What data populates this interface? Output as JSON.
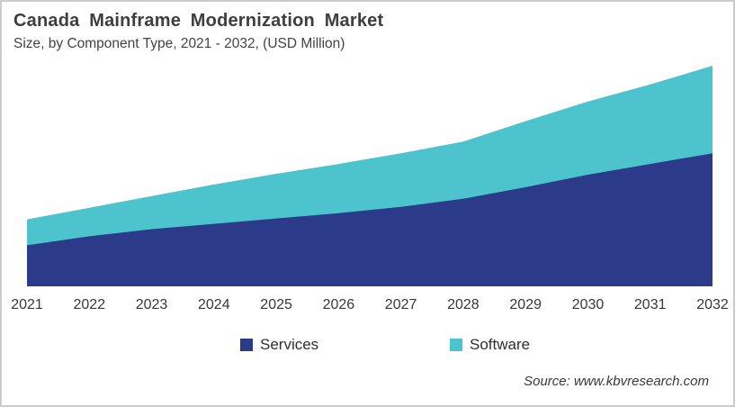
{
  "header": {
    "title": "Canada Mainframe Modernization Market",
    "subtitle": "Size, by Component Type, 2021 - 2032, (USD Million)"
  },
  "source": {
    "label": "Source: www.kbvresearch.com"
  },
  "legend": {
    "items": [
      {
        "label": "Services",
        "color": "#2b3b8a"
      },
      {
        "label": "Software",
        "color": "#4dc4cd"
      }
    ]
  },
  "chart_data": {
    "type": "area",
    "stacked": true,
    "title": "Canada Mainframe Modernization Market",
    "subtitle": "Size, by Component Type, 2021 - 2032, (USD Million)",
    "units": "USD Million",
    "categories": [
      "2021",
      "2022",
      "2023",
      "2024",
      "2025",
      "2026",
      "2027",
      "2028",
      "2029",
      "2030",
      "2031",
      "2032"
    ],
    "series": [
      {
        "name": "Services",
        "color": "#2b3b8a",
        "values": [
          46,
          56,
          64,
          70,
          76,
          82,
          89,
          98,
          111,
          125,
          137,
          149
        ]
      },
      {
        "name": "Software",
        "color": "#4dc4cd",
        "values": [
          29,
          32,
          37,
          44,
          50,
          55,
          60,
          64,
          74,
          82,
          89,
          98
        ]
      }
    ],
    "xlabel": "",
    "ylabel": "",
    "ylim": [
      0,
      250
    ],
    "grid": false,
    "y_axis_visible": false,
    "x_axis_line_visible": false,
    "legend_position": "bottom"
  }
}
